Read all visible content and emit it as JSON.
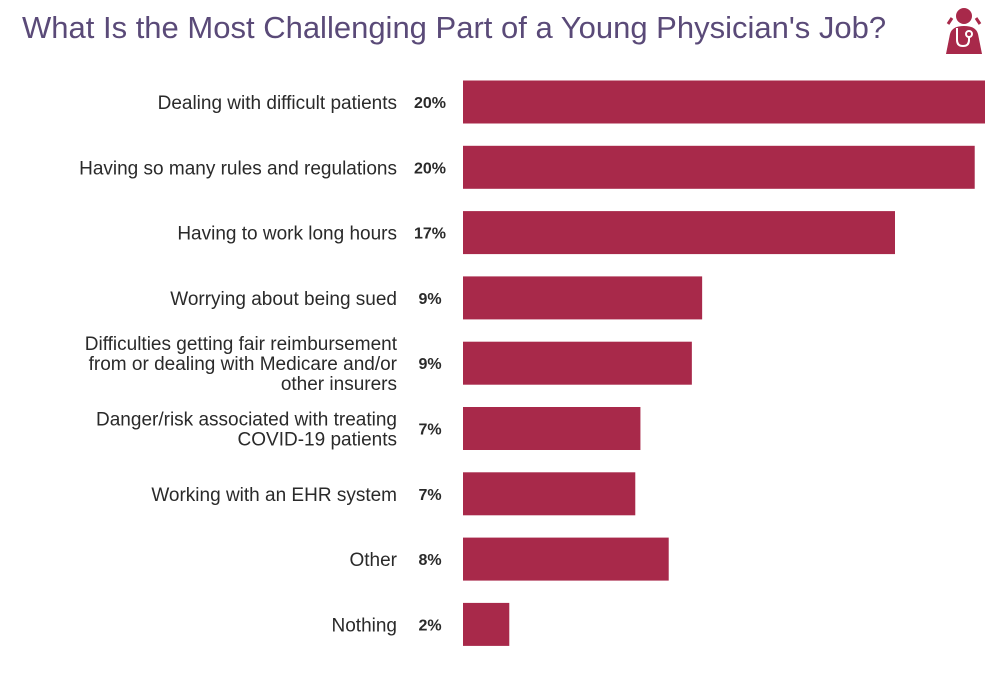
{
  "header": {
    "title": "What Is the Most Challenging Part of a Young Physician's Job?",
    "logo_icon": "physician-stethoscope-icon"
  },
  "colors": {
    "bar": "#a8294a",
    "title": "#5a4a78",
    "text": "#2a2a2a"
  },
  "chart_data": {
    "type": "bar",
    "orientation": "horizontal",
    "title": "What Is the Most Challenging Part of a Young Physician's Job?",
    "categories": [
      [
        "Dealing with difficult patients"
      ],
      [
        "Having so many rules and regulations"
      ],
      [
        "Having to work long hours"
      ],
      [
        "Worrying about being sued"
      ],
      [
        "Difficulties getting fair reimbursement",
        "from or dealing with Medicare and/or",
        "other insurers"
      ],
      [
        "Danger/risk associated with treating",
        "COVID-19 patients"
      ],
      [
        "Working with an EHR system"
      ],
      [
        "Other"
      ],
      [
        "Nothing"
      ]
    ],
    "values": [
      20.3,
      19.9,
      16.8,
      9.3,
      8.9,
      6.9,
      6.7,
      8.0,
      1.8
    ],
    "value_labels": [
      "20%",
      "20%",
      "17%",
      "9%",
      "9%",
      "7%",
      "7%",
      "8%",
      "2%"
    ],
    "xlabel": "",
    "ylabel": "",
    "xlim": [
      0,
      20.3
    ],
    "grid": false,
    "legend": "none"
  }
}
